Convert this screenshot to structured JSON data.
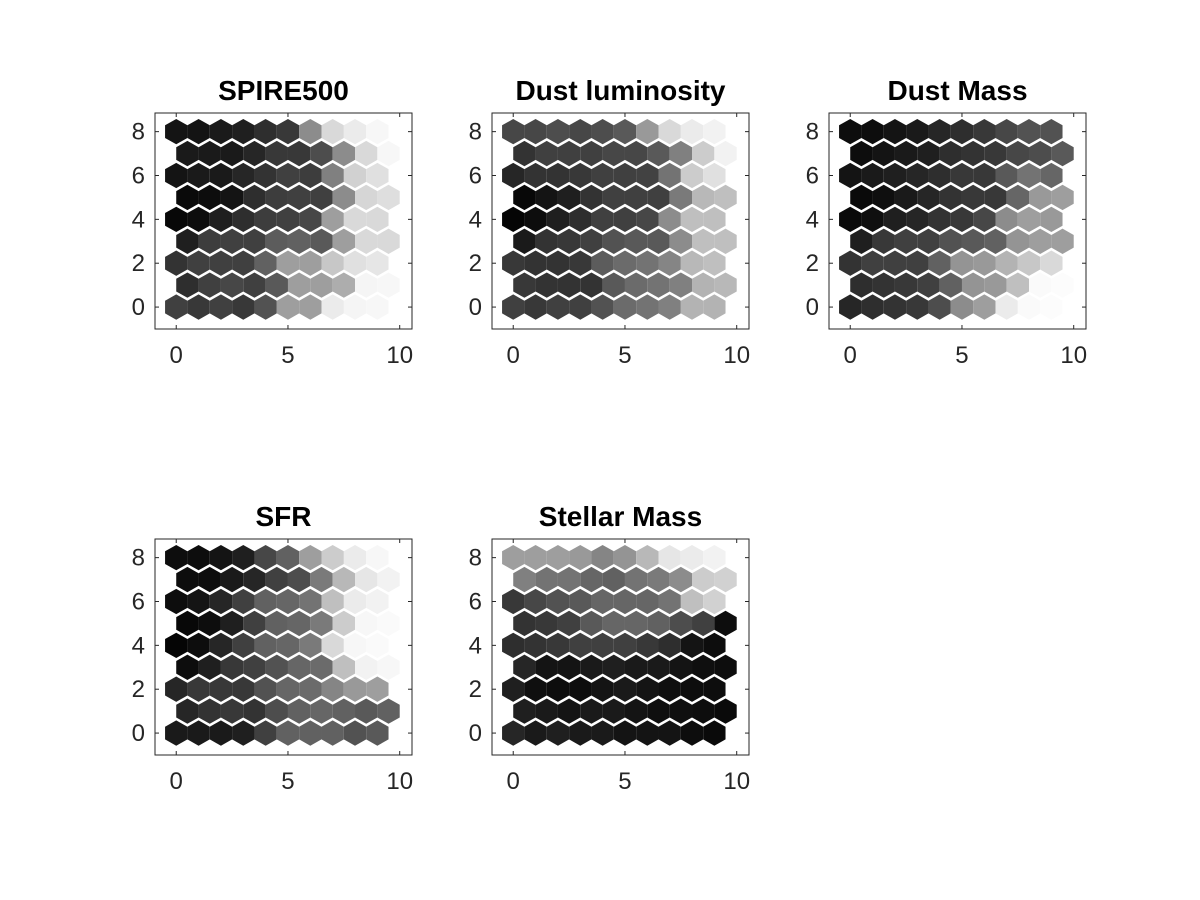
{
  "figure": {
    "title": ""
  },
  "chart_data": [
    {
      "type": "heatmap",
      "title": "SPIRE500",
      "xlabel": "",
      "ylabel": "",
      "grid_layout": "hexagonal",
      "rows": 9,
      "cols": 10,
      "xlim": [
        -0.95,
        10.55
      ],
      "ylim": [
        -1.0,
        8.85
      ],
      "xticks": [
        0,
        5,
        10
      ],
      "yticks": [
        0,
        2,
        4,
        6,
        8
      ],
      "colormap": "gray",
      "grid": false,
      "values": [
        [
          0.25,
          0.22,
          0.25,
          0.22,
          0.32,
          0.62,
          0.62,
          0.92,
          0.96,
          0.97
        ],
        [
          0.18,
          0.25,
          0.28,
          0.25,
          0.35,
          0.62,
          0.62,
          0.68,
          0.96,
          0.97
        ],
        [
          0.2,
          0.25,
          0.25,
          0.25,
          0.38,
          0.62,
          0.62,
          0.78,
          0.88,
          0.9
        ],
        [
          0.12,
          0.24,
          0.25,
          0.25,
          0.36,
          0.38,
          0.35,
          0.62,
          0.85,
          0.85
        ],
        [
          0.03,
          0.05,
          0.12,
          0.18,
          0.24,
          0.25,
          0.28,
          0.62,
          0.85,
          0.85
        ],
        [
          0.04,
          0.05,
          0.08,
          0.18,
          0.24,
          0.25,
          0.25,
          0.55,
          0.84,
          0.87
        ],
        [
          0.08,
          0.1,
          0.1,
          0.15,
          0.2,
          0.25,
          0.24,
          0.5,
          0.82,
          0.88
        ],
        [
          0.1,
          0.1,
          0.1,
          0.15,
          0.22,
          0.22,
          0.3,
          0.55,
          0.85,
          0.97
        ],
        [
          0.08,
          0.08,
          0.1,
          0.12,
          0.18,
          0.22,
          0.55,
          0.85,
          0.92,
          0.97
        ]
      ]
    },
    {
      "type": "heatmap",
      "title": "Dust luminosity",
      "xlabel": "",
      "ylabel": "",
      "grid_layout": "hexagonal",
      "rows": 9,
      "cols": 10,
      "xlim": [
        -0.95,
        10.55
      ],
      "ylim": [
        -1.0,
        8.85
      ],
      "xticks": [
        0,
        5,
        10
      ],
      "yticks": [
        0,
        2,
        4,
        6,
        8
      ],
      "colormap": "gray",
      "grid": false,
      "values": [
        [
          0.25,
          0.22,
          0.25,
          0.25,
          0.32,
          0.42,
          0.45,
          0.5,
          0.7,
          0.7
        ],
        [
          0.22,
          0.2,
          0.2,
          0.2,
          0.35,
          0.42,
          0.45,
          0.5,
          0.7,
          0.72
        ],
        [
          0.22,
          0.2,
          0.2,
          0.22,
          0.36,
          0.42,
          0.45,
          0.52,
          0.72,
          0.75
        ],
        [
          0.1,
          0.2,
          0.22,
          0.25,
          0.32,
          0.35,
          0.35,
          0.55,
          0.75,
          0.75
        ],
        [
          0.02,
          0.05,
          0.12,
          0.18,
          0.25,
          0.25,
          0.28,
          0.55,
          0.75,
          0.75
        ],
        [
          0.03,
          0.08,
          0.12,
          0.2,
          0.25,
          0.25,
          0.25,
          0.48,
          0.72,
          0.75
        ],
        [
          0.15,
          0.2,
          0.2,
          0.22,
          0.25,
          0.25,
          0.26,
          0.45,
          0.8,
          0.88
        ],
        [
          0.2,
          0.25,
          0.25,
          0.25,
          0.28,
          0.28,
          0.35,
          0.5,
          0.8,
          0.95
        ],
        [
          0.28,
          0.28,
          0.3,
          0.28,
          0.3,
          0.35,
          0.6,
          0.85,
          0.92,
          0.95
        ]
      ]
    },
    {
      "type": "heatmap",
      "title": "Dust Mass",
      "xlabel": "",
      "ylabel": "",
      "grid_layout": "hexagonal",
      "rows": 9,
      "cols": 10,
      "xlim": [
        -0.95,
        10.55
      ],
      "ylim": [
        -1.0,
        8.85
      ],
      "xticks": [
        0,
        5,
        10
      ],
      "yticks": [
        0,
        2,
        4,
        6,
        8
      ],
      "colormap": "gray",
      "grid": false,
      "values": [
        [
          0.15,
          0.18,
          0.2,
          0.22,
          0.3,
          0.55,
          0.62,
          0.92,
          0.98,
          0.99
        ],
        [
          0.18,
          0.2,
          0.22,
          0.25,
          0.38,
          0.58,
          0.6,
          0.75,
          0.98,
          0.99
        ],
        [
          0.2,
          0.25,
          0.25,
          0.25,
          0.38,
          0.58,
          0.6,
          0.7,
          0.78,
          0.85
        ],
        [
          0.12,
          0.22,
          0.25,
          0.25,
          0.32,
          0.35,
          0.38,
          0.58,
          0.62,
          0.62
        ],
        [
          0.04,
          0.06,
          0.12,
          0.15,
          0.2,
          0.22,
          0.28,
          0.55,
          0.62,
          0.6
        ],
        [
          0.04,
          0.06,
          0.1,
          0.15,
          0.2,
          0.22,
          0.22,
          0.4,
          0.6,
          0.62
        ],
        [
          0.08,
          0.1,
          0.12,
          0.15,
          0.18,
          0.22,
          0.22,
          0.35,
          0.45,
          0.4
        ],
        [
          0.05,
          0.08,
          0.1,
          0.12,
          0.18,
          0.2,
          0.22,
          0.28,
          0.3,
          0.35
        ],
        [
          0.05,
          0.05,
          0.08,
          0.1,
          0.15,
          0.18,
          0.22,
          0.28,
          0.32,
          0.32
        ]
      ]
    },
    {
      "type": "heatmap",
      "title": "SFR",
      "xlabel": "",
      "ylabel": "",
      "grid_layout": "hexagonal",
      "rows": 9,
      "cols": 10,
      "xlim": [
        -0.95,
        10.55
      ],
      "ylim": [
        -1.0,
        8.85
      ],
      "xticks": [
        0,
        5,
        10
      ],
      "yticks": [
        0,
        2,
        4,
        6,
        8
      ],
      "colormap": "gray",
      "grid": false,
      "values": [
        [
          0.1,
          0.1,
          0.1,
          0.12,
          0.25,
          0.38,
          0.38,
          0.38,
          0.32,
          0.35
        ],
        [
          0.15,
          0.2,
          0.22,
          0.2,
          0.3,
          0.38,
          0.4,
          0.38,
          0.35,
          0.38
        ],
        [
          0.15,
          0.22,
          0.22,
          0.22,
          0.32,
          0.4,
          0.42,
          0.52,
          0.6,
          0.62
        ],
        [
          0.05,
          0.12,
          0.22,
          0.25,
          0.32,
          0.4,
          0.42,
          0.75,
          0.95,
          0.97
        ],
        [
          0.02,
          0.05,
          0.15,
          0.25,
          0.38,
          0.4,
          0.48,
          0.85,
          0.97,
          0.98
        ],
        [
          0.03,
          0.05,
          0.12,
          0.25,
          0.38,
          0.4,
          0.48,
          0.8,
          0.97,
          0.98
        ],
        [
          0.05,
          0.08,
          0.15,
          0.25,
          0.38,
          0.4,
          0.45,
          0.75,
          0.92,
          0.95
        ],
        [
          0.05,
          0.05,
          0.1,
          0.15,
          0.25,
          0.3,
          0.48,
          0.72,
          0.9,
          0.95
        ],
        [
          0.05,
          0.05,
          0.08,
          0.12,
          0.28,
          0.38,
          0.62,
          0.8,
          0.92,
          0.97
        ]
      ]
    },
    {
      "type": "heatmap",
      "title": "Stellar Mass",
      "xlabel": "",
      "ylabel": "",
      "grid_layout": "hexagonal",
      "rows": 9,
      "cols": 10,
      "xlim": [
        -0.95,
        10.55
      ],
      "ylim": [
        -1.0,
        8.85
      ],
      "xticks": [
        0,
        5,
        10
      ],
      "yticks": [
        0,
        2,
        4,
        6,
        8
      ],
      "colormap": "gray",
      "grid": false,
      "values": [
        [
          0.15,
          0.1,
          0.12,
          0.1,
          0.1,
          0.08,
          0.08,
          0.08,
          0.05,
          0.04
        ],
        [
          0.12,
          0.1,
          0.08,
          0.1,
          0.1,
          0.08,
          0.06,
          0.06,
          0.05,
          0.04
        ],
        [
          0.12,
          0.06,
          0.05,
          0.05,
          0.08,
          0.1,
          0.08,
          0.06,
          0.05,
          0.05
        ],
        [
          0.15,
          0.08,
          0.08,
          0.1,
          0.12,
          0.1,
          0.1,
          0.08,
          0.06,
          0.05
        ],
        [
          0.18,
          0.2,
          0.22,
          0.25,
          0.25,
          0.25,
          0.22,
          0.18,
          0.08,
          0.05
        ],
        [
          0.2,
          0.22,
          0.25,
          0.35,
          0.4,
          0.4,
          0.38,
          0.3,
          0.25,
          0.05
        ],
        [
          0.22,
          0.28,
          0.32,
          0.35,
          0.4,
          0.4,
          0.4,
          0.45,
          0.75,
          0.82
        ],
        [
          0.5,
          0.45,
          0.45,
          0.4,
          0.38,
          0.45,
          0.48,
          0.55,
          0.8,
          0.82
        ],
        [
          0.62,
          0.62,
          0.62,
          0.6,
          0.52,
          0.58,
          0.72,
          0.9,
          0.92,
          0.95
        ]
      ]
    }
  ]
}
